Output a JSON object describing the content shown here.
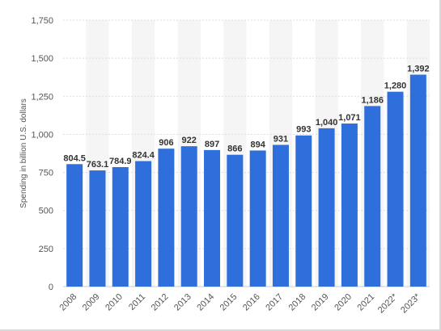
{
  "chart_data": {
    "type": "bar",
    "title": "",
    "xlabel": "",
    "ylabel": "Spending in billion U.S. dollars",
    "categories": [
      "2008",
      "2009",
      "2010",
      "2011",
      "2012",
      "2013",
      "2014",
      "2015",
      "2016",
      "2017",
      "2018",
      "2019",
      "2020",
      "2021",
      "2022*",
      "2023*"
    ],
    "values": [
      804.5,
      763.1,
      784.9,
      824.4,
      906,
      922,
      897,
      866,
      894,
      931,
      993,
      1040,
      1071,
      1186,
      1280,
      1392
    ],
    "value_labels": [
      "804.5",
      "763.1",
      "784.9",
      "824.4",
      "906",
      "922",
      "897",
      "866",
      "894",
      "931",
      "993",
      "1,040",
      "1,071",
      "1,186",
      "1,280",
      "1,392"
    ],
    "ylim": [
      0,
      1750
    ],
    "yticks": [
      0,
      250,
      500,
      750,
      1000,
      1250,
      1500,
      1750
    ],
    "ytick_labels": [
      "0",
      "250",
      "500",
      "750",
      "1,000",
      "1,250",
      "1,500",
      "1,750"
    ],
    "grid": true,
    "bar_color": "#2f6fdc",
    "band_color": "#f5f5f5",
    "grid_color": "#dddddd"
  }
}
